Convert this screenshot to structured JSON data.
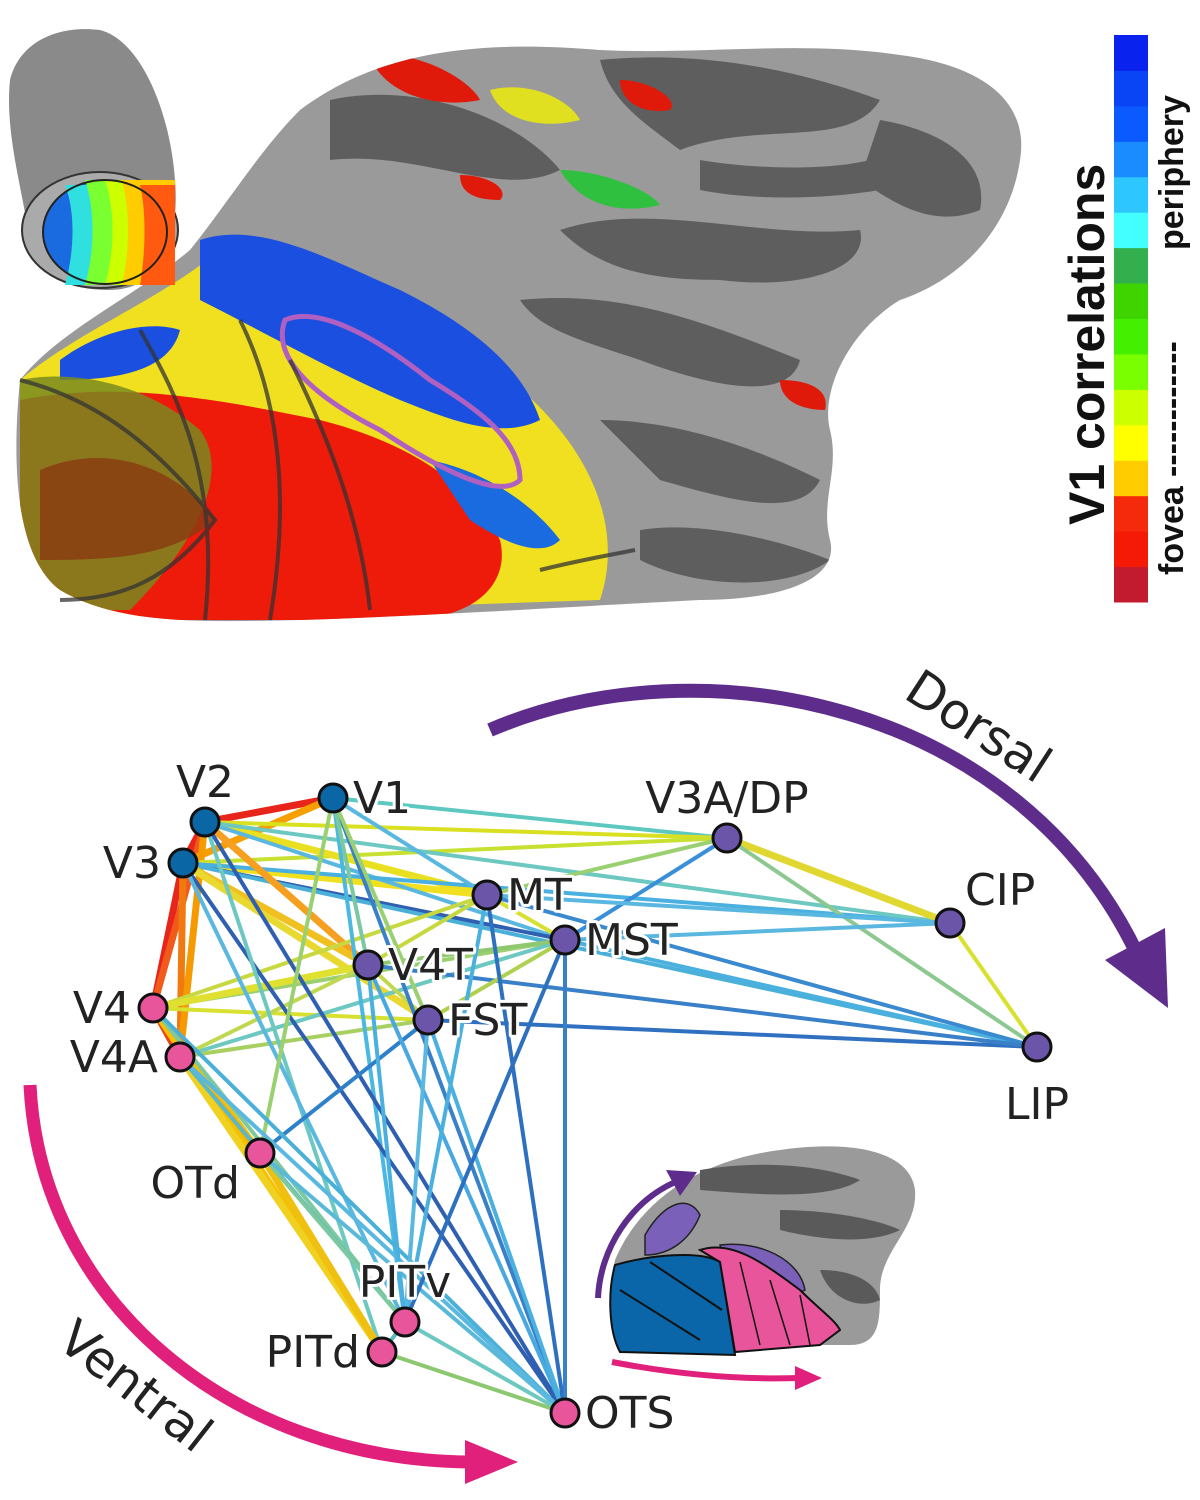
{
  "colorbar": {
    "title": "V1 correlations",
    "label_low": "fovea",
    "dashes": "------------",
    "label_high": "periphery",
    "colors_low_to_high": [
      "#c21b30",
      "#f51a05",
      "#f52a0c",
      "#ffcc00",
      "#ffff00",
      "#ccff00",
      "#7aff00",
      "#44f000",
      "#3fd400",
      "#33b04d",
      "#44ffff",
      "#2ec6ff",
      "#1a8cff",
      "#0a5aff",
      "#0a45f5",
      "#0a22ee"
    ]
  },
  "network": {
    "arrows": {
      "dorsal": "Dorsal",
      "ventral": "Ventral",
      "dorsal_color": "#5e2d8c",
      "ventral_color": "#e0207a"
    },
    "node_colors": {
      "early": "#0b66a6",
      "dorsal": "#6a55a8",
      "ventral": "#e8559a"
    },
    "nodes": [
      {
        "id": "V1",
        "label": "V1",
        "group": "early"
      },
      {
        "id": "V2",
        "label": "V2",
        "group": "early"
      },
      {
        "id": "V3",
        "label": "V3",
        "group": "early"
      },
      {
        "id": "V3A",
        "label": "V3A/DP",
        "group": "dorsal"
      },
      {
        "id": "MT",
        "label": "MT",
        "group": "dorsal"
      },
      {
        "id": "MST",
        "label": "MST",
        "group": "dorsal"
      },
      {
        "id": "V4T",
        "label": "V4T",
        "group": "dorsal"
      },
      {
        "id": "FST",
        "label": "FST",
        "group": "dorsal"
      },
      {
        "id": "CIP",
        "label": "CIP",
        "group": "dorsal"
      },
      {
        "id": "LIP",
        "label": "LIP",
        "group": "dorsal"
      },
      {
        "id": "V4",
        "label": "V4",
        "group": "ventral"
      },
      {
        "id": "V4A",
        "label": "V4A",
        "group": "ventral"
      },
      {
        "id": "OTd",
        "label": "OTd",
        "group": "ventral"
      },
      {
        "id": "PITv",
        "label": "PITv",
        "group": "ventral"
      },
      {
        "id": "PITd",
        "label": "PITd",
        "group": "ventral"
      },
      {
        "id": "OTS",
        "label": "OTS",
        "group": "ventral"
      }
    ],
    "edges": [
      [
        "V1",
        "V2",
        "#e8251a"
      ],
      [
        "V2",
        "V3",
        "#e8251a"
      ],
      [
        "V3",
        "V4",
        "#e8251a"
      ],
      [
        "V2",
        "V4",
        "#f05a1a"
      ],
      [
        "V3",
        "V4A",
        "#f07a10"
      ],
      [
        "V1",
        "V3",
        "#f5a000"
      ],
      [
        "V4",
        "V4A",
        "#e8461a"
      ],
      [
        "V2",
        "V4A",
        "#f59a00"
      ],
      [
        "V1",
        "V3A",
        "#5cc8c0"
      ],
      [
        "V2",
        "V3A",
        "#d8e020"
      ],
      [
        "V3",
        "V3A",
        "#c8e030"
      ],
      [
        "V2",
        "MT",
        "#e8e020"
      ],
      [
        "V3",
        "MT",
        "#f0e020"
      ],
      [
        "V2",
        "MST",
        "#5ab8e0"
      ],
      [
        "V3",
        "MST",
        "#2e5fb0"
      ],
      [
        "V3",
        "CIP",
        "#4ab0e0"
      ],
      [
        "V2",
        "CIP",
        "#6cc8c0"
      ],
      [
        "V3",
        "LIP",
        "#4ab0d8"
      ],
      [
        "V2",
        "V4T",
        "#f5a020"
      ],
      [
        "V3",
        "V4T",
        "#f0c020"
      ],
      [
        "V3",
        "FST",
        "#e8d830"
      ],
      [
        "V4",
        "MT",
        "#c8d840"
      ],
      [
        "V4",
        "MST",
        "#9ad070"
      ],
      [
        "V4",
        "V4T",
        "#e0e030"
      ],
      [
        "V4",
        "FST",
        "#d8e030"
      ],
      [
        "V4A",
        "MST",
        "#6cc8c0"
      ],
      [
        "V4A",
        "V4T",
        "#c0d850"
      ],
      [
        "V4A",
        "FST",
        "#a8d060"
      ],
      [
        "V3A",
        "MT",
        "#9ad070"
      ],
      [
        "V3A",
        "MST",
        "#3a90d8"
      ],
      [
        "V3A",
        "CIP",
        "#e0d830"
      ],
      [
        "V3A",
        "LIP",
        "#8cc890"
      ],
      [
        "MT",
        "MST",
        "#d8e030"
      ],
      [
        "MT",
        "CIP",
        "#5ab8e0"
      ],
      [
        "MST",
        "CIP",
        "#5ab8e0"
      ],
      [
        "MST",
        "LIP",
        "#4ab0e0"
      ],
      [
        "MT",
        "LIP",
        "#3a8ad0"
      ],
      [
        "FST",
        "LIP",
        "#3070c0"
      ],
      [
        "V4T",
        "LIP",
        "#3a80c8"
      ],
      [
        "CIP",
        "LIP",
        "#d8e030"
      ],
      [
        "V4T",
        "MST",
        "#90c870"
      ],
      [
        "V4T",
        "FST",
        "#c0d850"
      ],
      [
        "FST",
        "MST",
        "#b0d050"
      ],
      [
        "V4T",
        "MT",
        "#c8d840"
      ],
      [
        "V1",
        "PITv",
        "#4ab8e0"
      ],
      [
        "V1",
        "OTS",
        "#3a80c8"
      ],
      [
        "V2",
        "OTS",
        "#2e5fb0"
      ],
      [
        "V3",
        "OTS",
        "#2e5fb0"
      ],
      [
        "V2",
        "PITd",
        "#6cc8c0"
      ],
      [
        "V3",
        "PITv",
        "#5ab8e0"
      ],
      [
        "V1",
        "OTd",
        "#9ad070"
      ],
      [
        "V1",
        "FST",
        "#9ad070"
      ],
      [
        "V4",
        "OTd",
        "#f0c010"
      ],
      [
        "V4A",
        "OTd",
        "#f5b000"
      ],
      [
        "V4",
        "PITd",
        "#f5c000"
      ],
      [
        "V4A",
        "PITd",
        "#f0d020"
      ],
      [
        "V4",
        "PITv",
        "#7cc8a0"
      ],
      [
        "V4A",
        "PITv",
        "#5ab8c8"
      ],
      [
        "OTd",
        "PITd",
        "#f0c010"
      ],
      [
        "OTd",
        "PITv",
        "#7cc8a0"
      ],
      [
        "OTd",
        "FST",
        "#2e80c8"
      ],
      [
        "OTd",
        "OTS",
        "#5ab8d8"
      ],
      [
        "V4",
        "OTS",
        "#4ab0d8"
      ],
      [
        "V4A",
        "OTS",
        "#5ab8e0"
      ],
      [
        "V4T",
        "OTS",
        "#4aa8e0"
      ],
      [
        "FST",
        "OTS",
        "#4ab0e0"
      ],
      [
        "MT",
        "OTS",
        "#2e70c0"
      ],
      [
        "MST",
        "OTS",
        "#3a80c8"
      ],
      [
        "MT",
        "PITv",
        "#4ab0e0"
      ],
      [
        "MST",
        "PITv",
        "#2e70c0"
      ],
      [
        "FST",
        "PITv",
        "#5ab8e0"
      ],
      [
        "V4T",
        "PITv",
        "#4ab0e0"
      ],
      [
        "PITd",
        "OTS",
        "#8cc870"
      ],
      [
        "PITv",
        "OTS",
        "#6cc8c0"
      ],
      [
        "PITd",
        "PITv",
        "#5ab8c0"
      ],
      [
        "V1",
        "MT",
        "#5ab8e0"
      ],
      [
        "V1",
        "V4T",
        "#7cc8a0"
      ]
    ]
  },
  "inset_arrows": {
    "dorsal_color": "#5e2d8c",
    "ventral_color": "#e0207a"
  }
}
